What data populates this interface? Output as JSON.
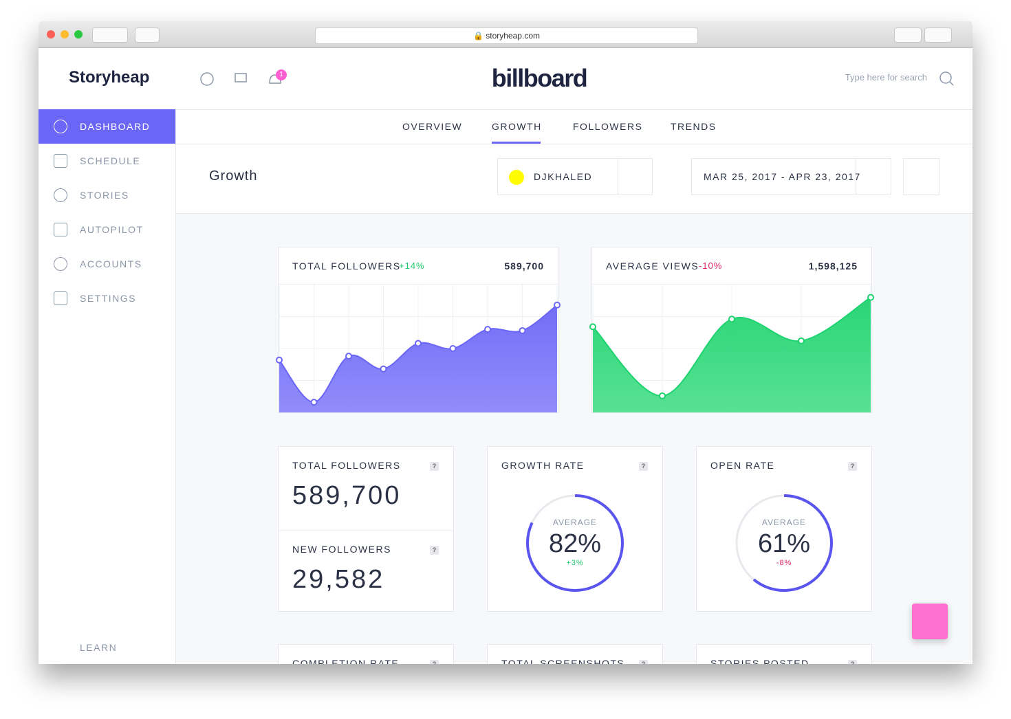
{
  "browser": {
    "url": "storyheap.com"
  },
  "header": {
    "brand": "Storyheap",
    "notifications": 1,
    "client": "billboard",
    "search_placeholder": "Type here for search"
  },
  "sidebar": {
    "items": [
      "DASHBOARD",
      "SCHEDULE",
      "STORIES",
      "AUTOPILOT",
      "ACCOUNTS",
      "SETTINGS"
    ],
    "active": 0,
    "footer": "LEARN"
  },
  "tabs": {
    "items": [
      "OVERVIEW",
      "GROWTH",
      "FOLLOWERS",
      "TRENDS"
    ],
    "active": 1
  },
  "toolbar": {
    "title": "Growth",
    "account": "DJKHALED",
    "date_range": "MAR 25, 2017 - APR 23, 2017"
  },
  "help_label": "?",
  "charts": [
    {
      "title": "TOTAL FOLLOWERS",
      "change": "+14%",
      "total": "589,700",
      "color": "#6b66f5",
      "fill": "#8b87fb",
      "ylim": [
        0,
        100
      ],
      "values": [
        41,
        8,
        44,
        34,
        54,
        50,
        65,
        64,
        84
      ]
    },
    {
      "title": "AVERAGE VIEWS",
      "change": "-10%",
      "total": "1,598,125",
      "color": "#1ed36f",
      "fill": "#4fe08e",
      "ylim": [
        0,
        100
      ],
      "values": [
        67,
        13,
        73,
        56,
        90
      ]
    }
  ],
  "stats": [
    {
      "items": [
        {
          "title": "TOTAL FOLLOWERS",
          "value": "589,700"
        },
        {
          "title": "NEW FOLLOWERS",
          "value": "29,582"
        }
      ]
    },
    {
      "title": "GROWTH RATE",
      "caption": "AVERAGE",
      "value": {
        "value": 82,
        "label": "82%"
      },
      "change": "+3%"
    },
    {
      "title": "OPEN RATE",
      "caption": "AVERAGE",
      "value": {
        "value": 61,
        "label": "61%"
      },
      "change": "-8%"
    }
  ],
  "more_stats": [
    "COMPLETION RATE",
    "TOTAL SCREENSHOTS",
    "STORIES POSTED"
  ]
}
